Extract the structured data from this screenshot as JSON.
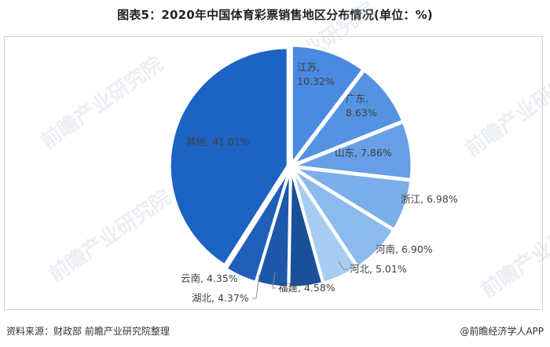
{
  "title": "图表5：2020年中国体育彩票销售地区分布情况(单位：%)",
  "footer": {
    "source": "资料来源：财政部 前瞻产业研究院整理",
    "credit": "@前瞻经济学人APP"
  },
  "watermark": "前瞻产业研究院",
  "chart_data": {
    "type": "pie",
    "title": "图表5：2020年中国体育彩票销售地区分布情况(单位：%)",
    "unit": "%",
    "start_angle": "12 o'clock, clockwise",
    "legend": "none (data labels on/beside slices)",
    "categories": [
      "江苏",
      "广东",
      "山东",
      "浙江",
      "河南",
      "河北",
      "福建",
      "湖北",
      "云南",
      "其他"
    ],
    "values": [
      10.32,
      8.63,
      7.86,
      6.98,
      6.9,
      5.01,
      4.58,
      4.37,
      4.35,
      41.01
    ],
    "labels": [
      "江苏, 10.32%",
      "广东, 8.63%",
      "山东, 7.86%",
      "浙江, 6.98%",
      "河南, 6.90%",
      "河北, 5.01%",
      "福建, 4.58%",
      "湖北, 4.37%",
      "云南, 4.35%",
      "其他, 41.01%"
    ],
    "colors": [
      "#4a8ae0",
      "#5593e2",
      "#669fe6",
      "#7aaeea",
      "#8cbaec",
      "#a9cdf2",
      "#1a4f9a",
      "#1d58ab",
      "#1f5fba",
      "#1c63c3"
    ]
  }
}
